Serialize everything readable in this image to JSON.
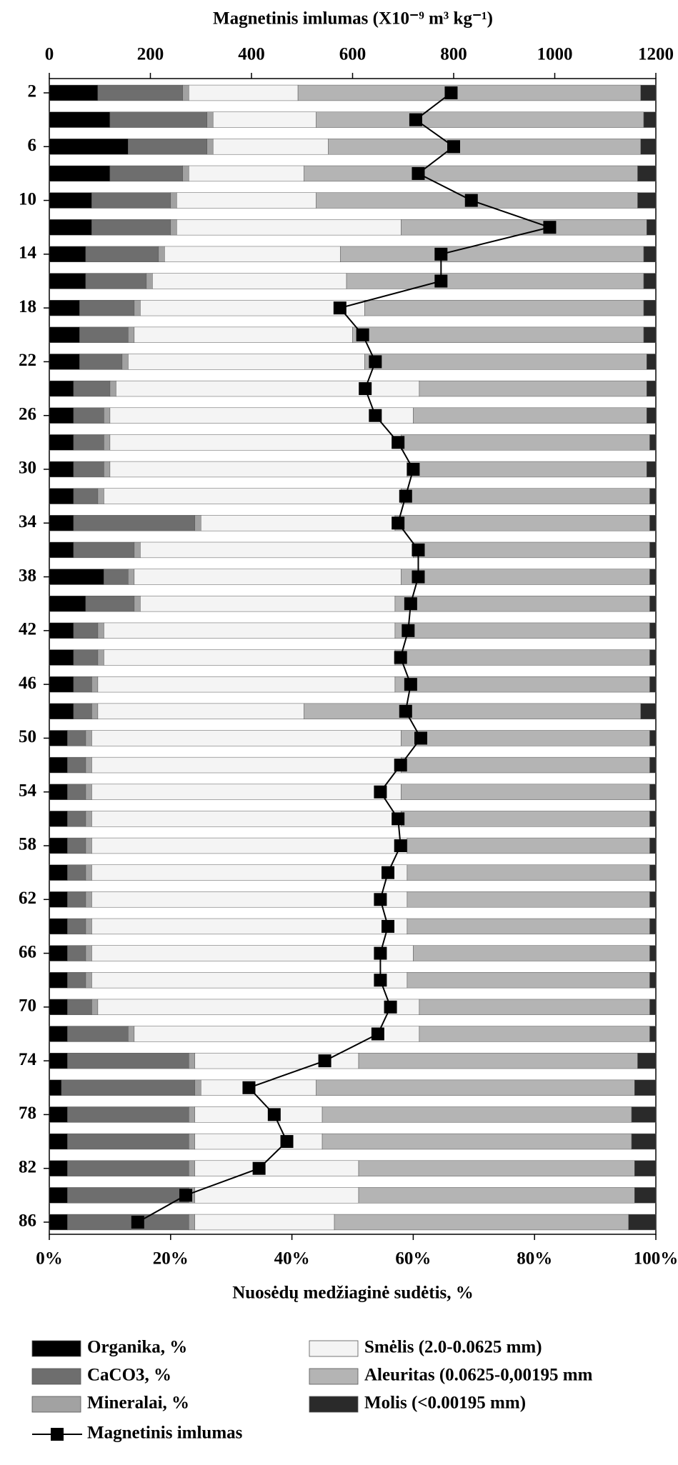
{
  "chart_data": {
    "type": "bar",
    "orientation": "horizontal",
    "stacked": true,
    "title": "Magnetinis imlumas (X10⁻⁹ m³ kg⁻¹)",
    "xlabel": "Nuosėdų medžiaginė sudėtis, %",
    "categories": [
      "2",
      null,
      "6",
      null,
      "10",
      null,
      "14",
      null,
      "18",
      null,
      "22",
      null,
      "26",
      null,
      "30",
      null,
      "34",
      null,
      "38",
      null,
      "42",
      null,
      "46",
      null,
      "50",
      null,
      "54",
      null,
      "58",
      null,
      "62",
      null,
      "66",
      null,
      "70",
      null,
      "74",
      null,
      "78",
      null,
      "82",
      null,
      "86"
    ],
    "xlim": [
      0,
      100
    ],
    "xticks": [
      {
        "value": 0,
        "label": "0%"
      },
      {
        "value": 20,
        "label": "20%"
      },
      {
        "value": 40,
        "label": "40%"
      },
      {
        "value": 60,
        "label": "60%"
      },
      {
        "value": 80,
        "label": "80%"
      },
      {
        "value": 100,
        "label": "100%"
      }
    ],
    "x2lim": [
      0,
      1200
    ],
    "x2ticks": [
      0,
      200,
      400,
      600,
      800,
      1000,
      1200
    ],
    "grid": false,
    "legend": "bottom",
    "series": [
      {
        "name": "Organika, %",
        "color": "#000000",
        "values": [
          8,
          10,
          13,
          10,
          7,
          7,
          6,
          6,
          5,
          5,
          5,
          4,
          4,
          4,
          4,
          4,
          4,
          4,
          9,
          6,
          4,
          4,
          4,
          4,
          3,
          3,
          3,
          3,
          3,
          3,
          3,
          3,
          3,
          3,
          3,
          3,
          3,
          2,
          3,
          3,
          3,
          3,
          3
        ]
      },
      {
        "name": "CaCO3, %",
        "color": "#6e6e6e",
        "values": [
          14,
          16,
          13,
          12,
          13,
          13,
          12,
          10,
          9,
          8,
          7,
          6,
          5,
          5,
          5,
          4,
          20,
          10,
          4,
          8,
          4,
          4,
          3,
          3,
          3,
          3,
          3,
          3,
          3,
          3,
          3,
          3,
          3,
          3,
          4,
          10,
          20,
          22,
          20,
          20,
          20,
          20,
          20
        ]
      },
      {
        "name": "Mineralai, %",
        "color": "#a2a2a2",
        "values": [
          1,
          1,
          1,
          1,
          1,
          1,
          1,
          1,
          1,
          1,
          1,
          1,
          1,
          1,
          1,
          1,
          1,
          1,
          1,
          1,
          1,
          1,
          1,
          1,
          1,
          1,
          1,
          1,
          1,
          1,
          1,
          1,
          1,
          1,
          1,
          1,
          1,
          1,
          1,
          1,
          1,
          1,
          1
        ]
      },
      {
        "name": "Smėlis (2.0-0.0625 mm)",
        "color": "#f4f4f4",
        "values": [
          18,
          17,
          19,
          19,
          23,
          37,
          29,
          32,
          37,
          36,
          39,
          50,
          50,
          48,
          49,
          49,
          32,
          45,
          44,
          42,
          48,
          48,
          49,
          34,
          51,
          51,
          51,
          51,
          52,
          52,
          52,
          52,
          53,
          52,
          53,
          47,
          27,
          19,
          21,
          21,
          27,
          27,
          23
        ]
      },
      {
        "name": "Aleuritas (0.0625-0,00195 mm",
        "color": "#b4b4b4",
        "values": [
          56.5,
          54,
          51.5,
          55,
          53,
          40.5,
          50,
          49,
          46,
          48,
          46.5,
          37.5,
          38.5,
          41,
          39.5,
          41,
          42,
          39,
          41,
          42,
          42,
          42,
          42,
          55.5,
          41,
          41,
          41,
          41,
          40,
          40,
          40,
          40,
          39,
          40,
          38,
          38,
          46,
          52.5,
          51,
          51,
          45.5,
          45.5,
          48.5
        ]
      },
      {
        "name": "Molis (<0.00195 mm)",
        "color": "#2a2a2a",
        "values": [
          2.5,
          2,
          2.5,
          3,
          3,
          1.5,
          2,
          2,
          2,
          2,
          1.5,
          1.5,
          1.5,
          1,
          1.5,
          1,
          1,
          1,
          1,
          1,
          1,
          1,
          1,
          2.5,
          1,
          1,
          1,
          1,
          1,
          1,
          1,
          1,
          1,
          1,
          1,
          1,
          3,
          3.5,
          4,
          4,
          3.5,
          3.5,
          4.5
        ]
      },
      {
        "name": "Magnetinis imlumas",
        "color": "#000000",
        "axis": "x2",
        "values": [
          795,
          725,
          800,
          730,
          835,
          990,
          775,
          775,
          575,
          620,
          645,
          625,
          645,
          690,
          720,
          705,
          690,
          730,
          730,
          715,
          710,
          695,
          715,
          705,
          735,
          695,
          655,
          690,
          695,
          670,
          655,
          670,
          655,
          655,
          675,
          650,
          545,
          395,
          445,
          470,
          415,
          270,
          175
        ]
      }
    ]
  }
}
